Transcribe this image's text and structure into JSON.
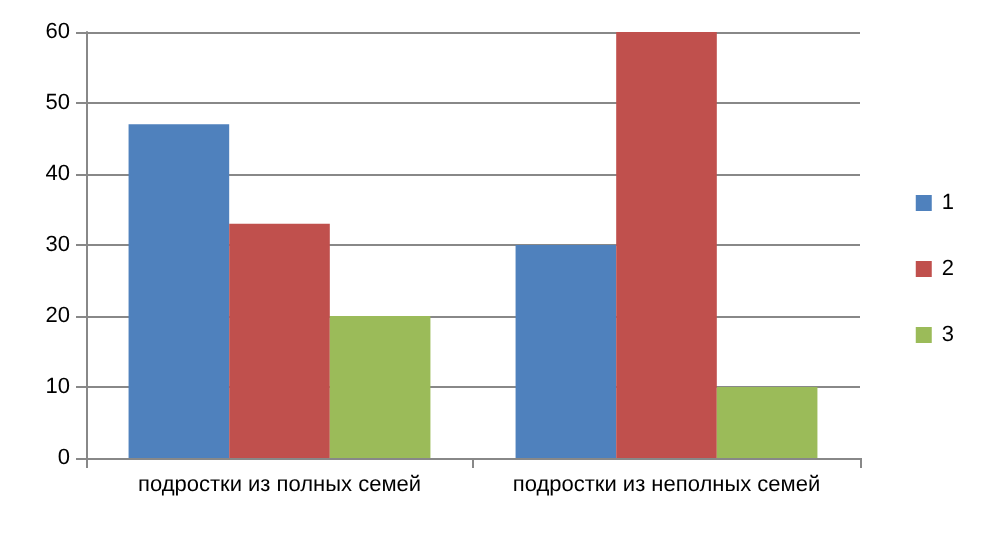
{
  "chart_data": {
    "type": "bar",
    "categories": [
      "подростки из полных семей",
      "подростки из неполных семей"
    ],
    "series": [
      {
        "name": "1",
        "color": "#4f81bd",
        "values": [
          47,
          30
        ]
      },
      {
        "name": "2",
        "color": "#c0504d",
        "values": [
          33,
          60
        ]
      },
      {
        "name": "3",
        "color": "#9bbb59",
        "values": [
          20,
          10
        ]
      }
    ],
    "ylim": [
      0,
      60
    ],
    "yticks": [
      0,
      10,
      20,
      30,
      40,
      50,
      60
    ],
    "grid": "y",
    "legend": "right"
  }
}
